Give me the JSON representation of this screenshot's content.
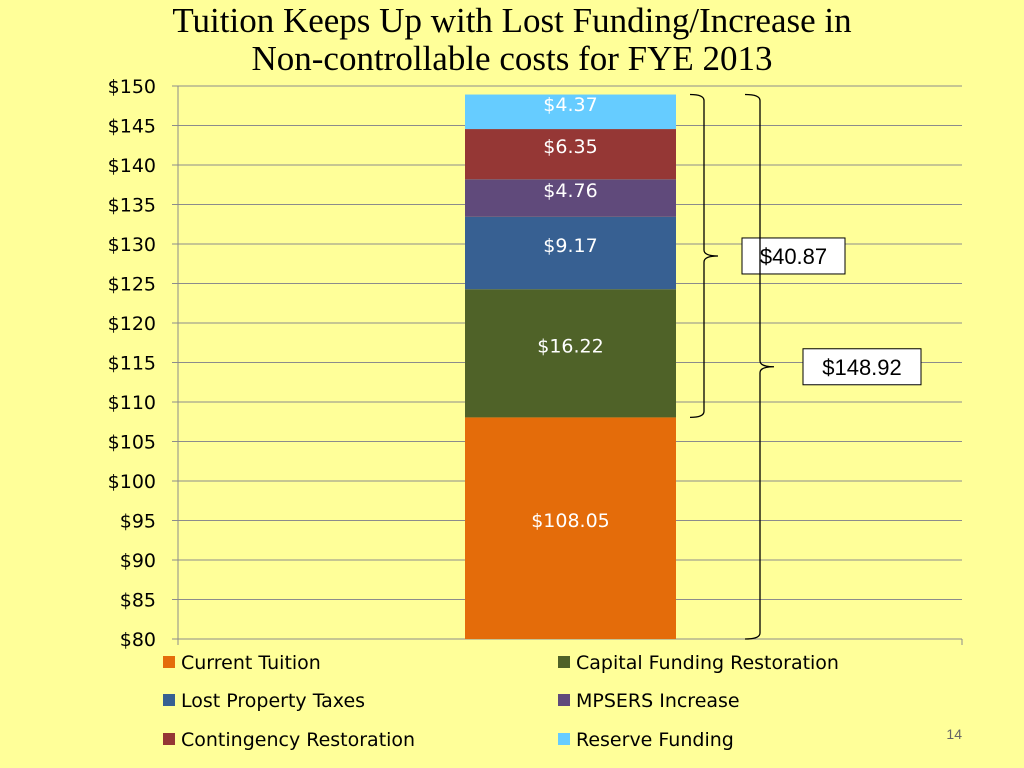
{
  "slide": {
    "title_line1": "Tuition Keeps Up with Lost Funding/Increase in",
    "title_line2": "Non-controllable costs for FYE 2013",
    "page_number": "14"
  },
  "chart_data": {
    "type": "bar",
    "stacked": true,
    "title": "Tuition Keeps Up with Lost Funding/Increase in Non-controllable costs for FYE 2013",
    "xlabel": "",
    "ylabel": "",
    "ylim": [
      80,
      150
    ],
    "ytick_step": 5,
    "ytick_prefix": "$",
    "grid": true,
    "legend_position": "bottom",
    "series": [
      {
        "name": "Current Tuition",
        "value": 108.05,
        "label": "$108.05",
        "color": "#E46C0A"
      },
      {
        "name": "Capital Funding Restoration",
        "value": 16.22,
        "label": "$16.22",
        "color": "#4F6228"
      },
      {
        "name": "Lost Property Taxes",
        "value": 9.17,
        "label": "$9.17",
        "color": "#376092"
      },
      {
        "name": "MPSERS Increase",
        "value": 4.76,
        "label": "$4.76",
        "color": "#604A7B"
      },
      {
        "name": "Contingency Restoration",
        "value": 6.35,
        "label": "$6.35",
        "color": "#953735"
      },
      {
        "name": "Reserve Funding",
        "value": 4.37,
        "label": "$4.37",
        "color": "#66CCFF"
      }
    ],
    "annotations": [
      {
        "label": "$40.87",
        "from_series": 1,
        "to_series": 5
      },
      {
        "label": "$148.92",
        "from_series": 0,
        "to_series": 5
      }
    ]
  }
}
